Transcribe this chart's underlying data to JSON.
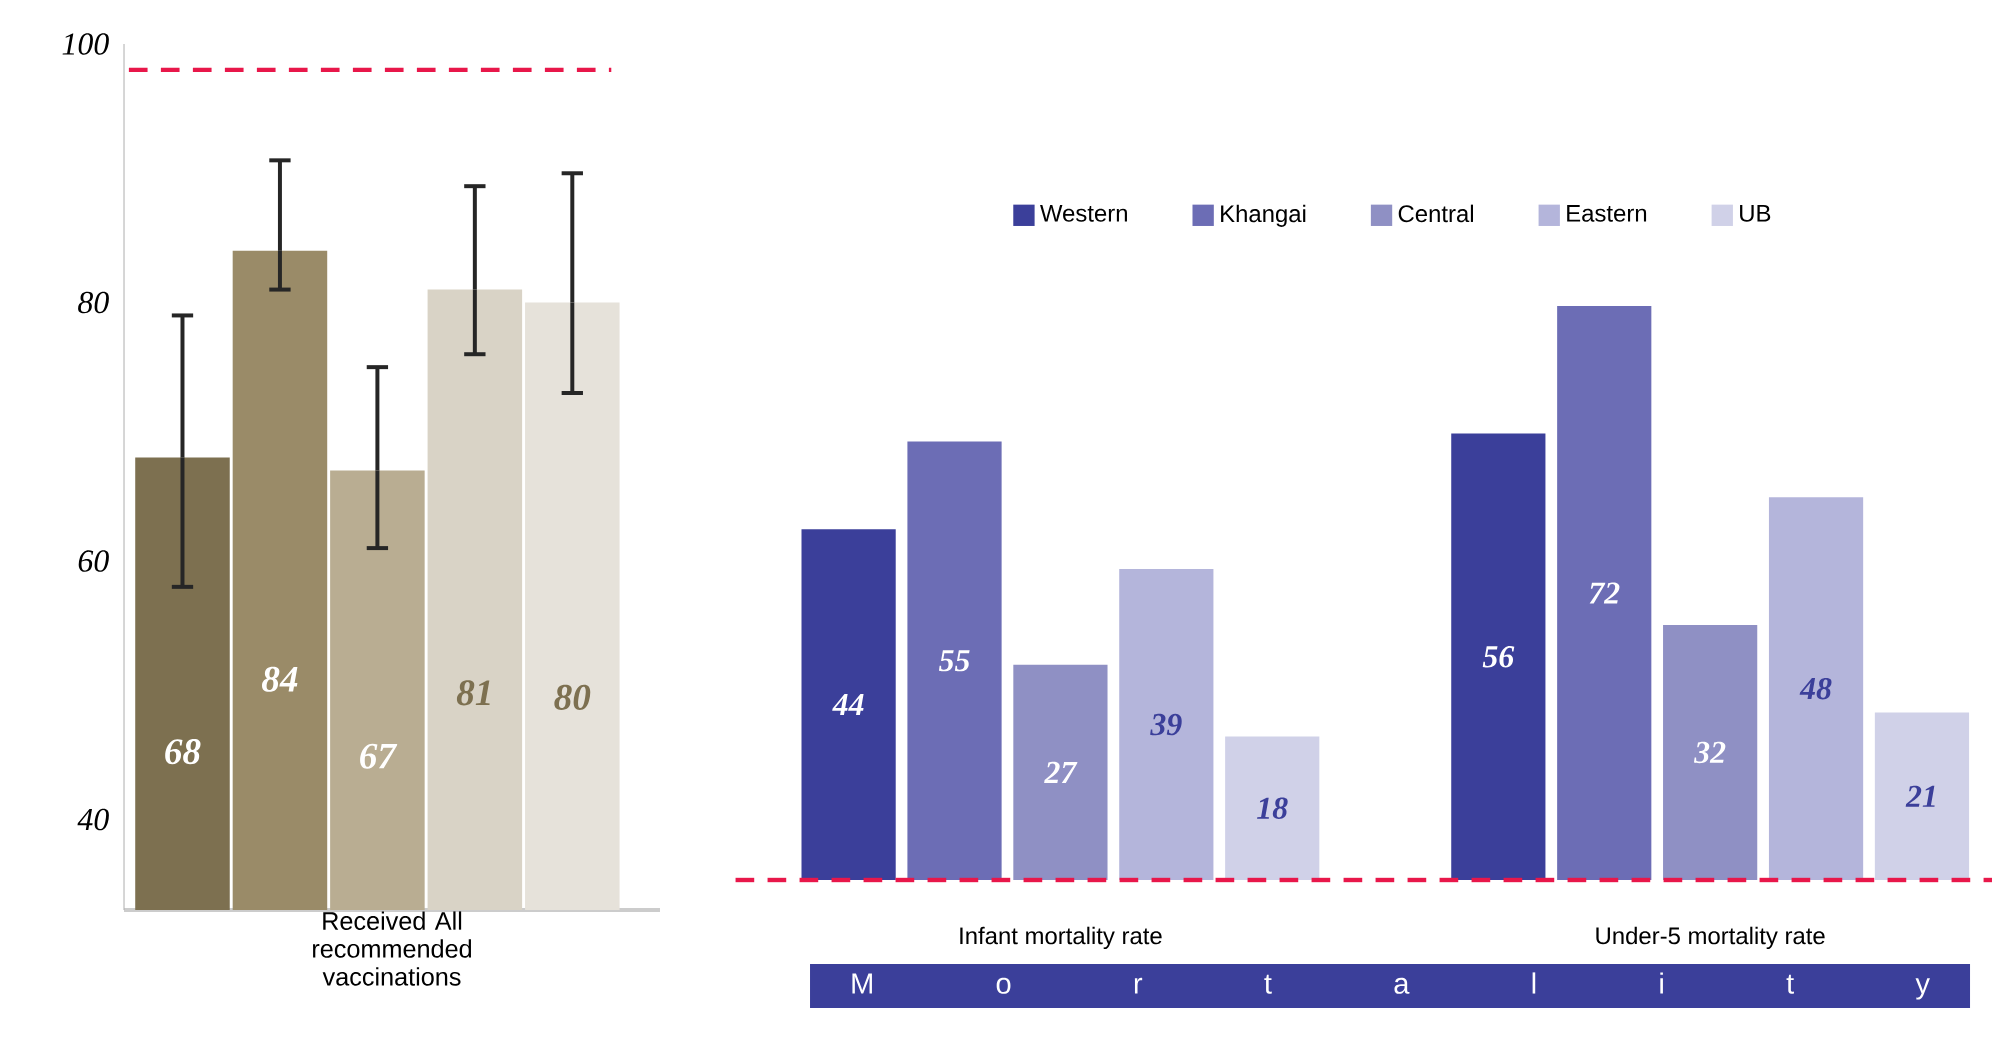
{
  "chart_data": [
    {
      "type": "bar",
      "categories": [
        null,
        null,
        null,
        null,
        null
      ],
      "values": [
        68,
        84,
        67,
        81,
        80
      ],
      "colors": [
        "#7d7050",
        "#9a8b68",
        "#b9ad92",
        "#d9d3c6",
        "#e6e2da"
      ],
      "errors": [
        [
          58,
          79
        ],
        [
          81,
          91
        ],
        [
          61,
          75
        ],
        [
          76,
          89
        ],
        [
          73,
          90
        ]
      ],
      "data_labels": true,
      "xlabel": "Received All recommended vaccinations",
      "ylim": [
        33,
        100
      ],
      "yticks": [
        40,
        60,
        80,
        100
      ],
      "ref_lines": [
        {
          "axis": "y",
          "value": 98,
          "color": "#e8174a",
          "line_style": "dashed"
        }
      ]
    },
    {
      "type": "bar",
      "categories": [
        "Infant mortality rate",
        "Under-5 mortality rate"
      ],
      "series": [
        {
          "name": "Western",
          "color": "#3b3f9a",
          "values": [
            44,
            56
          ]
        },
        {
          "name": "Khangai",
          "color": "#6c6db5",
          "values": [
            55,
            72
          ]
        },
        {
          "name": "Central",
          "color": "#8f90c4",
          "values": [
            27,
            32
          ]
        },
        {
          "name": "Eastern",
          "color": "#b4b5db",
          "values": [
            39,
            48
          ]
        },
        {
          "name": "UB",
          "color": "#d0d1e8",
          "values": [
            18,
            21
          ]
        }
      ],
      "data_labels": true,
      "legend": "top",
      "ref_lines": [
        {
          "axis": "y",
          "value": 0,
          "color": "#e8174a",
          "line_style": "dashed"
        }
      ],
      "annotations": [
        "M o r t a l i t y"
      ]
    }
  ]
}
